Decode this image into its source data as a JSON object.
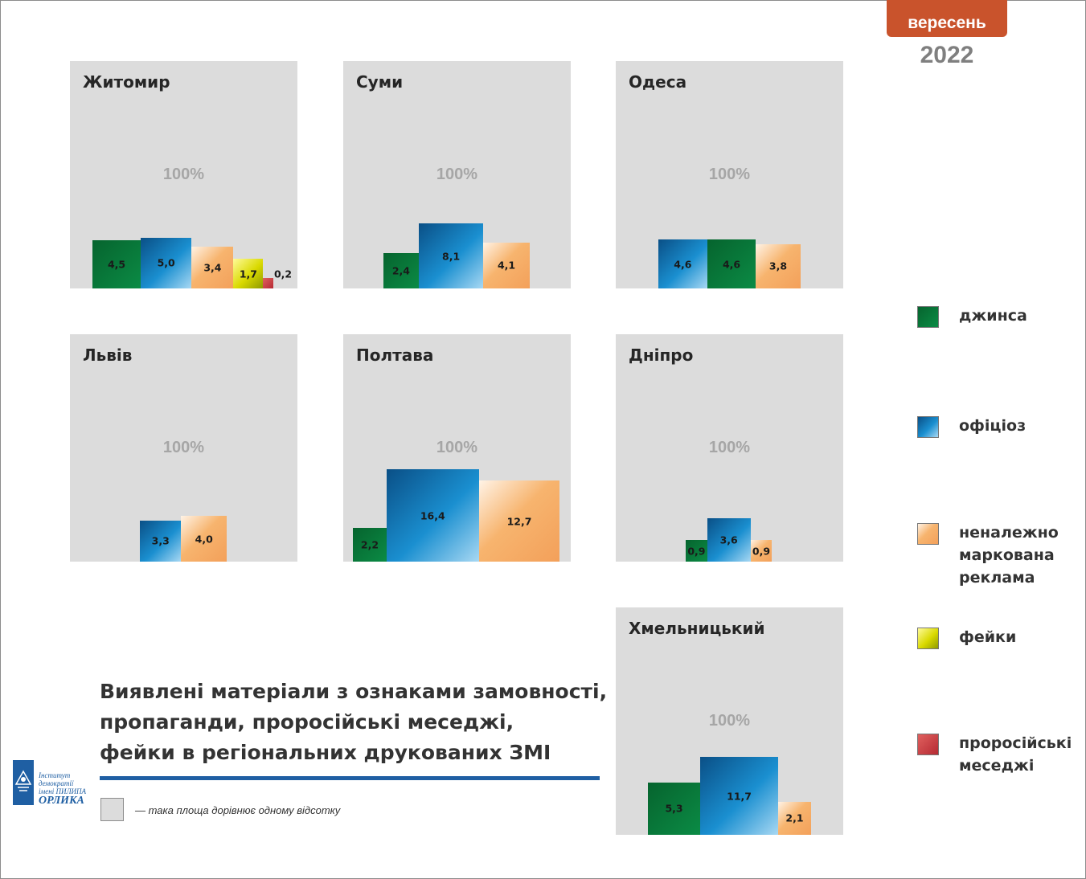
{
  "header": {
    "month": "вересень",
    "year": "2022"
  },
  "caption": {
    "lines": [
      "Виявлені матеріали з ознаками замовності,",
      "пропаганди, проросійські меседжі,",
      "фейки в регіональних друкованих ЗМІ"
    ]
  },
  "unit_note": "— така площа дорівнює одному відсотку",
  "logo": {
    "line1": "Інститут демократії",
    "line2": "імені ПИЛИПА",
    "line3": "ОРЛИКА"
  },
  "legend": [
    {
      "key": "dzhynsa",
      "label": "джинса"
    },
    {
      "key": "ofitsioz",
      "label": "офіціоз"
    },
    {
      "key": "reklama",
      "label": "неналежно маркована реклама"
    },
    {
      "key": "feiky",
      "label": "фейки"
    },
    {
      "key": "prorosiiski",
      "label": "проросійські меседжі"
    }
  ],
  "colors": {
    "dzhynsa": "#0a7a3a",
    "ofitsioz": "#1b8fd0",
    "reklama": "#f3a460",
    "feiky": "#d8d800",
    "prorosiiski": "#c0303a",
    "panel": "#dcdcdc",
    "accent": "#c9532c",
    "rule": "#1f5fa3"
  },
  "chart_data": [
    {
      "type": "bar",
      "title": "Житомир",
      "reference_label": "100%",
      "bars": [
        {
          "category": "джинса",
          "value": 4.5,
          "label": "4,5"
        },
        {
          "category": "офіціоз",
          "value": 5.0,
          "label": "5,0"
        },
        {
          "category": "неналежно маркована реклама",
          "value": 3.4,
          "label": "3,4"
        },
        {
          "category": "фейки",
          "value": 1.7,
          "label": "1,7"
        },
        {
          "category": "проросійські меседжі",
          "value": 0.2,
          "label": "0,2"
        }
      ]
    },
    {
      "type": "bar",
      "title": "Суми",
      "reference_label": "100%",
      "bars": [
        {
          "category": "джинса",
          "value": 2.4,
          "label": "2,4"
        },
        {
          "category": "офіціоз",
          "value": 8.1,
          "label": "8,1"
        },
        {
          "category": "неналежно маркована реклама",
          "value": 4.1,
          "label": "4,1"
        }
      ]
    },
    {
      "type": "bar",
      "title": "Одеса",
      "reference_label": "100%",
      "bars": [
        {
          "category": "офіціоз",
          "value": 4.6,
          "label": "4,6"
        },
        {
          "category": "джинса",
          "value": 4.6,
          "label": "4,6"
        },
        {
          "category": "неналежно маркована реклама",
          "value": 3.8,
          "label": "3,8"
        }
      ]
    },
    {
      "type": "bar",
      "title": "Львів",
      "reference_label": "100%",
      "bars": [
        {
          "category": "офіціоз",
          "value": 3.3,
          "label": "3,3"
        },
        {
          "category": "неналежно маркована реклама",
          "value": 4.0,
          "label": "4,0"
        }
      ]
    },
    {
      "type": "bar",
      "title": "Полтава",
      "reference_label": "100%",
      "bars": [
        {
          "category": "джинса",
          "value": 2.2,
          "label": "2,2"
        },
        {
          "category": "офіціоз",
          "value": 16.4,
          "label": "16,4"
        },
        {
          "category": "неналежно маркована реклама",
          "value": 12.7,
          "label": "12,7"
        }
      ]
    },
    {
      "type": "bar",
      "title": "Дніпро",
      "reference_label": "100%",
      "bars": [
        {
          "category": "джинса",
          "value": 0.9,
          "label": "0,9"
        },
        {
          "category": "офіціоз",
          "value": 3.6,
          "label": "3,6"
        },
        {
          "category": "неналежно маркована реклама",
          "value": 0.9,
          "label": "0,9"
        }
      ]
    },
    {
      "type": "bar",
      "title": "Хмельницький",
      "reference_label": "100%",
      "bars": [
        {
          "category": "джинса",
          "value": 5.3,
          "label": "5,3"
        },
        {
          "category": "офіціоз",
          "value": 11.7,
          "label": "11,7"
        },
        {
          "category": "неналежно маркована реклама",
          "value": 2.1,
          "label": "2,1"
        }
      ]
    }
  ]
}
